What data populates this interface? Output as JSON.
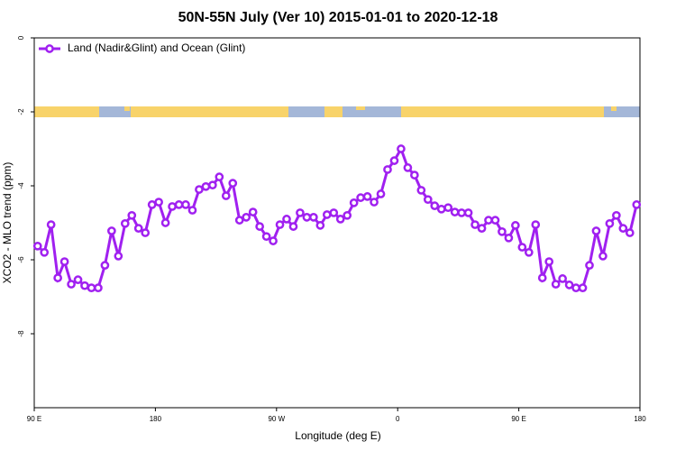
{
  "chart_data": {
    "type": "line",
    "title": "50N-55N July (Ver 10)   2015-01-01 to 2020-12-18",
    "xlabel": "Longitude (deg E)",
    "ylabel": "XCO2 - MLO trend (ppm)",
    "xlim": [
      90,
      540
    ],
    "ylim": [
      -10,
      0
    ],
    "xticks": [
      {
        "value": 90,
        "label": "90 E"
      },
      180,
      {
        "value": 270,
        "label": "90 W"
      },
      {
        "value": 360,
        "label": "0"
      },
      {
        "value": 450,
        "label": "90 E"
      },
      {
        "value": 540,
        "label": "180"
      }
    ],
    "yticks": [
      0,
      -2,
      -4,
      -6,
      -8
    ],
    "legend": "top-left",
    "series": [
      {
        "name": "Land (Nadir&Glint) and Ocean (Glint)",
        "color": "#a020f0",
        "x": [
          92.5,
          97.5,
          102.5,
          107.5,
          112.5,
          117.5,
          122.5,
          127.5,
          132.5,
          137.5,
          142.5,
          147.5,
          152.5,
          157.5,
          162.5,
          167.5,
          172.5,
          177.5,
          182.5,
          187.5,
          192.5,
          197.5,
          202.5,
          207.5,
          212.5,
          217.5,
          222.5,
          227.5,
          232.5,
          237.5,
          242.5,
          247.5,
          252.5,
          257.5,
          262.5,
          267.5,
          272.5,
          277.5,
          282.5,
          287.5,
          292.5,
          297.5,
          302.5,
          307.5,
          312.5,
          317.5,
          322.5,
          327.5,
          332.5,
          337.5,
          342.5,
          347.5,
          352.5,
          357.5,
          362.5,
          367.5,
          372.5,
          377.5,
          382.5,
          387.5,
          392.5,
          397.5,
          402.5,
          407.5,
          412.5,
          417.5,
          422.5,
          427.5,
          432.5,
          437.5,
          442.5,
          447.5,
          452.5,
          457.5,
          462.5,
          467.5,
          472.5,
          477.5,
          482.5,
          487.5,
          492.5,
          497.5,
          502.5,
          507.5,
          512.5,
          517.5,
          522.5,
          527.5,
          532.5,
          537.5
        ],
        "values": [
          -5.63,
          -5.8,
          -5.05,
          -6.49,
          -6.05,
          -6.66,
          -6.54,
          -6.7,
          -6.76,
          -6.76,
          -6.15,
          -5.22,
          -5.9,
          -5.02,
          -4.8,
          -5.15,
          -5.27,
          -4.51,
          -4.44,
          -5.0,
          -4.56,
          -4.51,
          -4.51,
          -4.66,
          -4.1,
          -4.02,
          -3.98,
          -3.76,
          -4.27,
          -3.93,
          -4.93,
          -4.85,
          -4.71,
          -5.1,
          -5.37,
          -5.49,
          -5.05,
          -4.9,
          -5.1,
          -4.73,
          -4.85,
          -4.85,
          -5.07,
          -4.78,
          -4.73,
          -4.9,
          -4.8,
          -4.46,
          -4.32,
          -4.29,
          -4.44,
          -4.22,
          -3.56,
          -3.32,
          -3.0,
          -3.51,
          -3.71,
          -4.12,
          -4.37,
          -4.54,
          -4.63,
          -4.59,
          -4.71,
          -4.73,
          -4.73,
          -5.05,
          -5.15,
          -4.93,
          -4.93,
          -5.24,
          -5.41,
          -5.07,
          -5.66,
          -5.8,
          -5.05,
          -6.49,
          -6.05,
          -6.66,
          -6.51,
          -6.68,
          -6.76,
          -6.76,
          -6.15,
          -5.22,
          -5.9,
          -5.02,
          -4.8,
          -5.15,
          -5.27,
          -4.51
        ]
      }
    ]
  }
}
